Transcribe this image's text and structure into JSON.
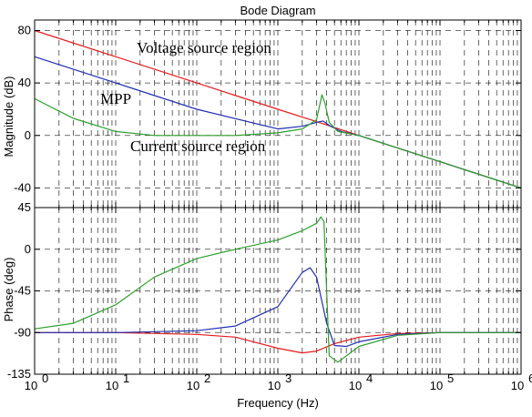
{
  "chart_data": [
    {
      "type": "line",
      "panel": "magnitude",
      "title": "Bode Diagram",
      "xlabel": "",
      "ylabel": "Magnitude (dB)",
      "xscale": "log",
      "xlim": [
        1,
        1000000
      ],
      "ylim": [
        -55,
        88
      ],
      "yticks": [
        80,
        40,
        0,
        -40
      ],
      "grid": true,
      "series": [
        {
          "color": "#e41a1c",
          "x": [
            1,
            10,
            100,
            1000,
            3000,
            10000,
            100000,
            1000000
          ],
          "y": [
            80,
            60,
            40,
            20,
            10.5,
            0,
            -20,
            -40
          ]
        },
        {
          "color": "#1f2fb4",
          "x": [
            1,
            10,
            100,
            1000,
            2000,
            3000,
            3600,
            4500,
            6000,
            10000,
            100000,
            1000000
          ],
          "y": [
            60,
            40,
            20,
            5,
            7,
            10,
            11,
            7,
            3,
            0,
            -20,
            -40
          ]
        },
        {
          "color": "#2ca02c",
          "x": [
            1,
            3,
            10,
            30,
            100,
            300,
            1000,
            2000,
            3000,
            3500,
            3800,
            4300,
            5500,
            10000,
            100000,
            1000000
          ],
          "y": [
            28,
            13,
            3,
            0,
            0,
            0,
            2,
            5,
            12,
            31,
            25,
            10,
            3,
            0,
            -20,
            -40
          ]
        }
      ],
      "annotations": [
        "Voltage source region",
        "MPP",
        "Current source region"
      ]
    },
    {
      "type": "line",
      "panel": "phase",
      "xlabel": "Frequency  (Hz)",
      "ylabel": "Phase (deg)",
      "xscale": "log",
      "xlim": [
        1,
        1000000
      ],
      "xticks": [
        1,
        10,
        100,
        1000,
        10000,
        100000,
        1000000
      ],
      "ylim": [
        -135,
        45
      ],
      "yticks": [
        45,
        0,
        -45,
        -90,
        -135
      ],
      "grid": true,
      "series": [
        {
          "color": "#e41a1c",
          "x": [
            1,
            10,
            100,
            300,
            1000,
            2000,
            3000,
            5000,
            10000,
            30000,
            100000,
            1000000
          ],
          "y": [
            -90,
            -90,
            -92,
            -95,
            -107,
            -112,
            -110,
            -102,
            -95,
            -91,
            -90,
            -90
          ]
        },
        {
          "color": "#1f2fb4",
          "x": [
            1,
            10,
            100,
            300,
            1000,
            2000,
            2500,
            3000,
            4000,
            5000,
            7000,
            10000,
            30000,
            100000,
            1000000
          ],
          "y": [
            -90,
            -90,
            -88,
            -83,
            -62,
            -25,
            -20,
            -30,
            -80,
            -104,
            -105,
            -100,
            -92,
            -90,
            -90
          ]
        },
        {
          "color": "#2ca02c",
          "x": [
            1,
            3,
            10,
            30,
            100,
            300,
            1000,
            2000,
            3000,
            3400,
            3700,
            4300,
            5500,
            10000,
            30000,
            100000,
            1000000
          ],
          "y": [
            -86,
            -80,
            -60,
            -30,
            -10,
            0,
            10,
            20,
            28,
            35,
            30,
            -115,
            -122,
            -105,
            -93,
            -90,
            -90
          ]
        }
      ]
    }
  ],
  "xtick_labels": [
    {
      "base": "10",
      "exp": "0"
    },
    {
      "base": "10",
      "exp": "1"
    },
    {
      "base": "10",
      "exp": "2"
    },
    {
      "base": "10",
      "exp": "3"
    },
    {
      "base": "10",
      "exp": "4"
    },
    {
      "base": "10",
      "exp": "5"
    },
    {
      "base": "10",
      "exp": "6"
    }
  ]
}
